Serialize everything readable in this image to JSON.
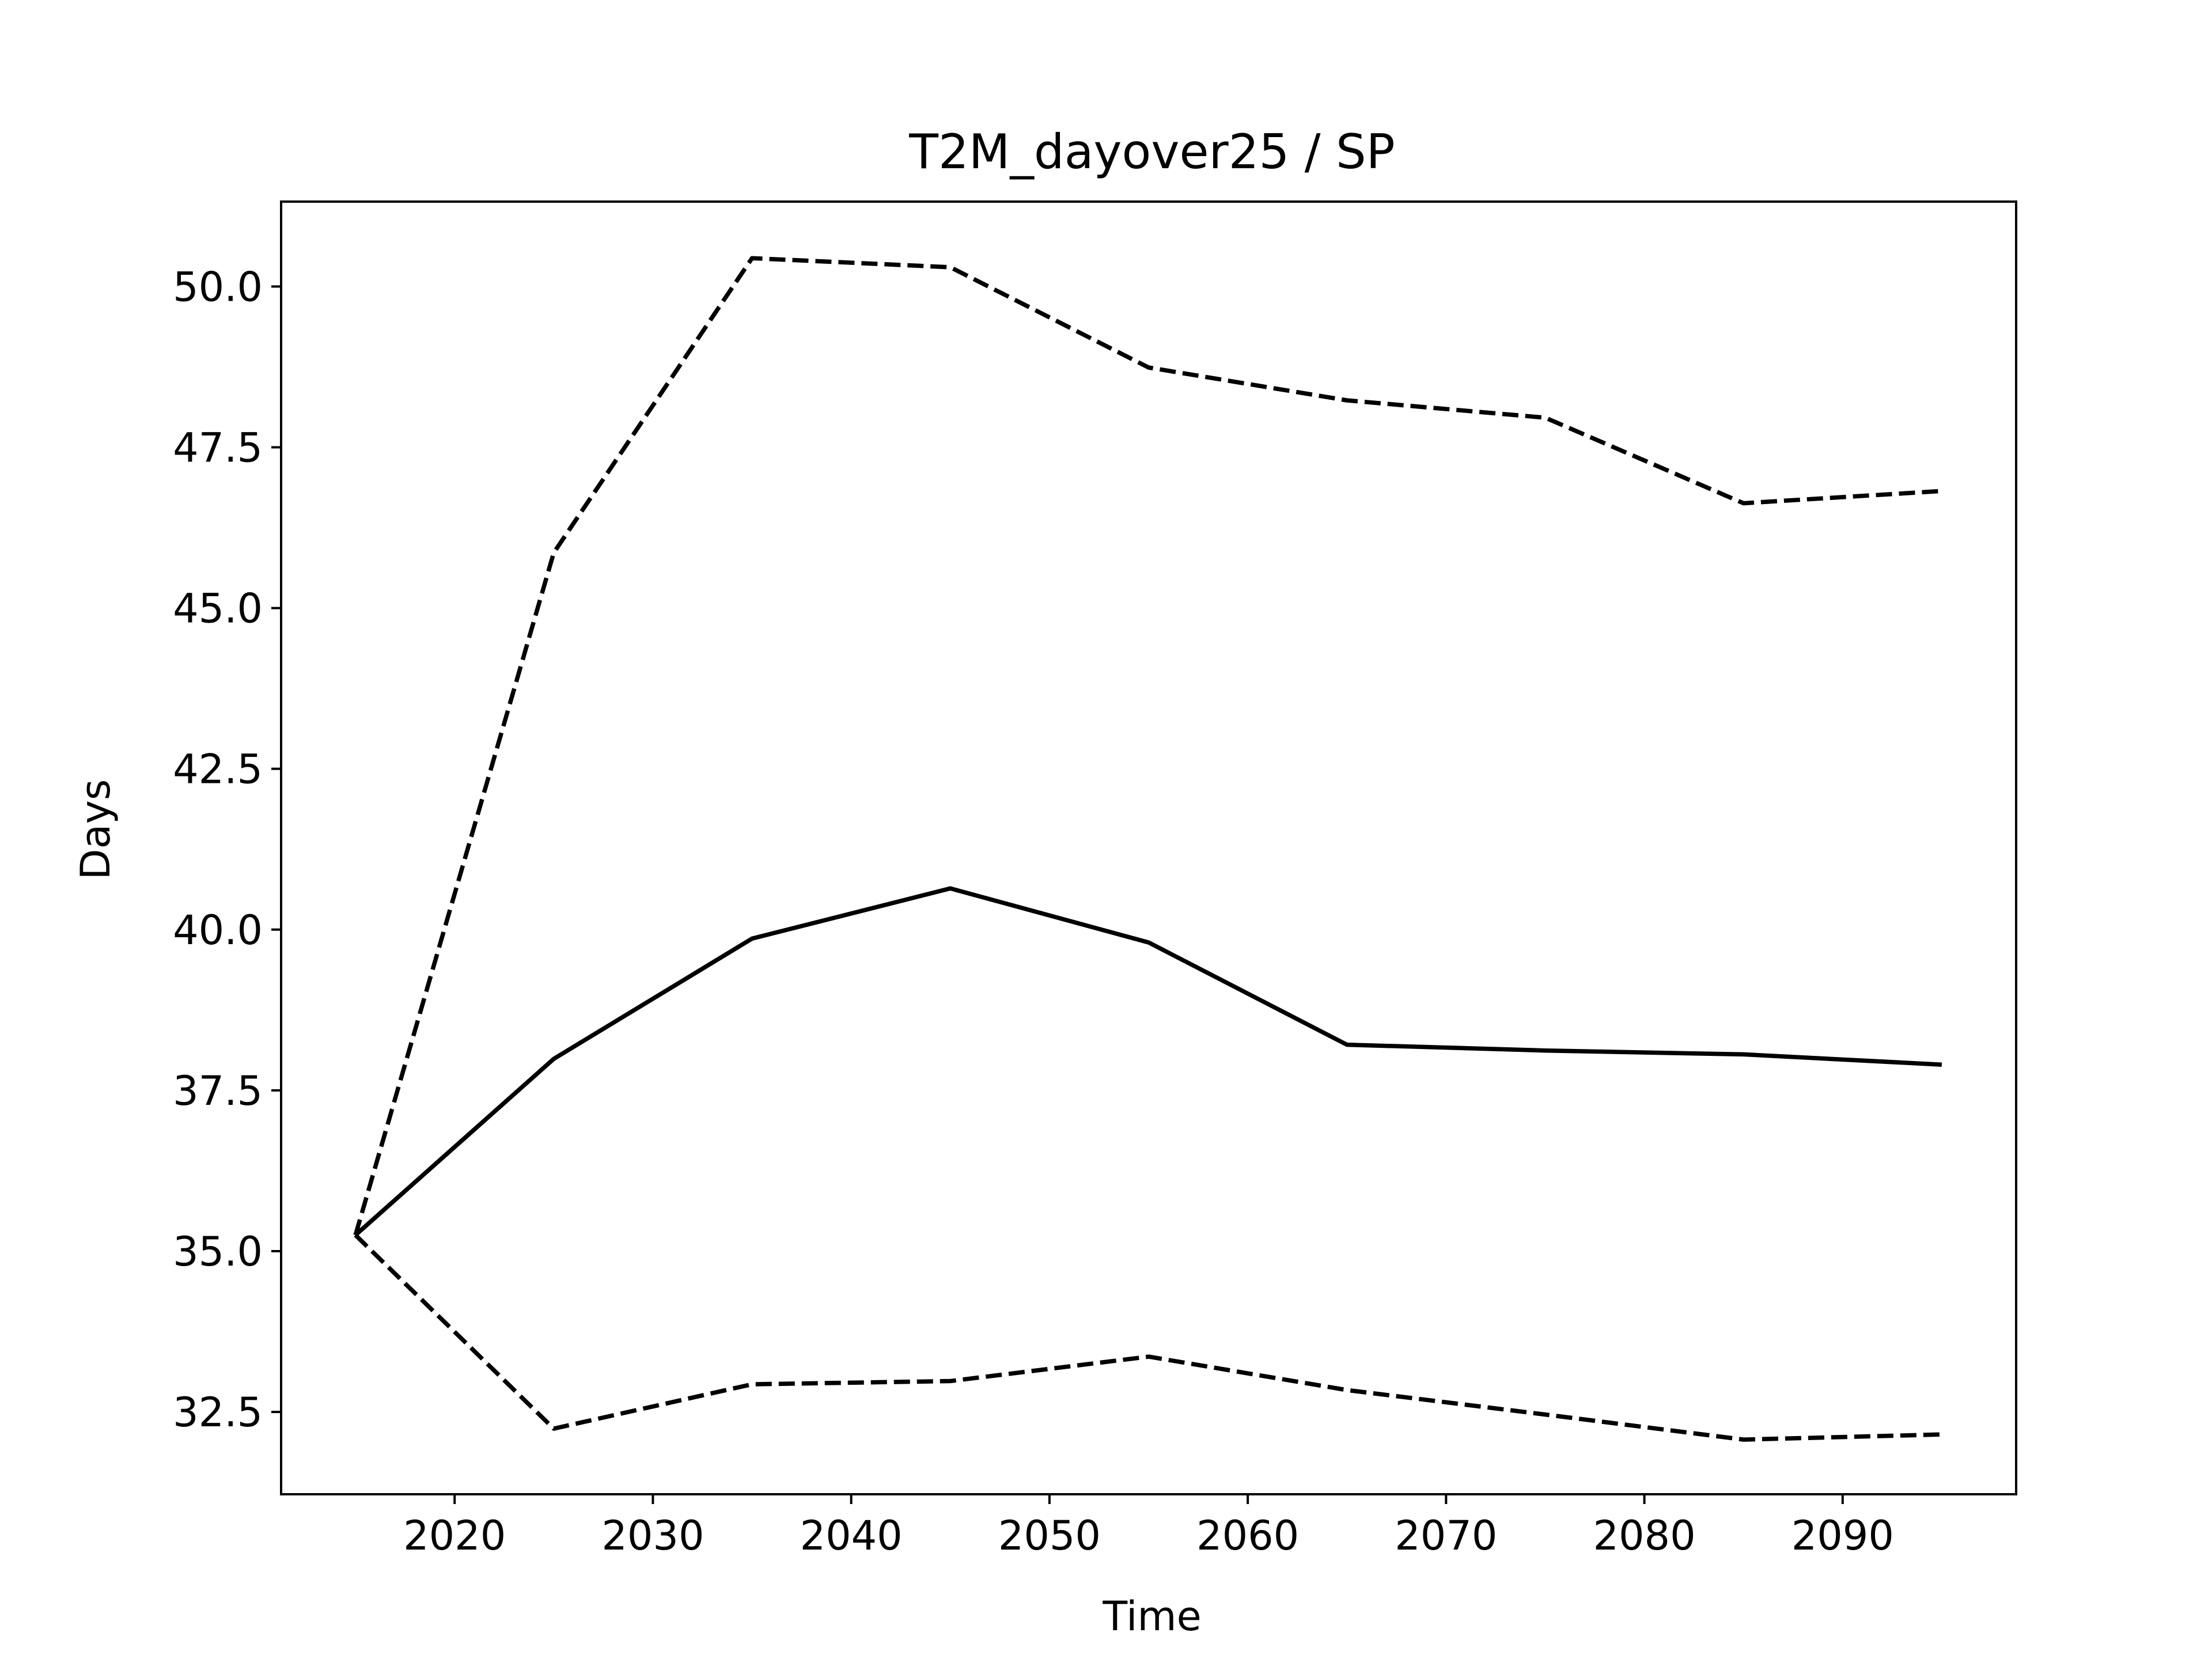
{
  "chart_data": {
    "type": "line",
    "title": "T2M_dayover25 / SP",
    "xlabel": "Time",
    "ylabel": "Days",
    "xlim": [
      2011.25,
      2098.75
    ],
    "ylim": [
      31.22,
      51.32
    ],
    "xticks": [
      2020,
      2030,
      2040,
      2050,
      2060,
      2070,
      2080,
      2090
    ],
    "yticks": [
      32.5,
      35.0,
      37.5,
      40.0,
      42.5,
      45.0,
      47.5,
      50.0
    ],
    "xtick_labels": [
      "2020",
      "2030",
      "2040",
      "2050",
      "2060",
      "2070",
      "2080",
      "2090"
    ],
    "ytick_labels": [
      "32.5",
      "35.0",
      "37.5",
      "40.0",
      "42.5",
      "45.0",
      "47.5",
      "50.0"
    ],
    "grid": false,
    "legend": "none",
    "x": [
      2015,
      2025,
      2035,
      2045,
      2055,
      2065,
      2075,
      2085,
      2095
    ],
    "series": [
      {
        "style": "dashed",
        "color": "#000000",
        "values": [
          35.25,
          45.86,
          50.44,
          50.3,
          48.74,
          48.23,
          47.96,
          46.63,
          46.82
        ]
      },
      {
        "style": "solid",
        "color": "#000000",
        "values": [
          35.25,
          37.99,
          39.86,
          40.64,
          39.8,
          38.21,
          38.12,
          38.06,
          37.9
        ]
      },
      {
        "style": "dashed",
        "color": "#000000",
        "values": [
          35.25,
          32.24,
          32.93,
          32.98,
          33.36,
          32.84,
          32.46,
          32.07,
          32.15
        ]
      }
    ]
  }
}
